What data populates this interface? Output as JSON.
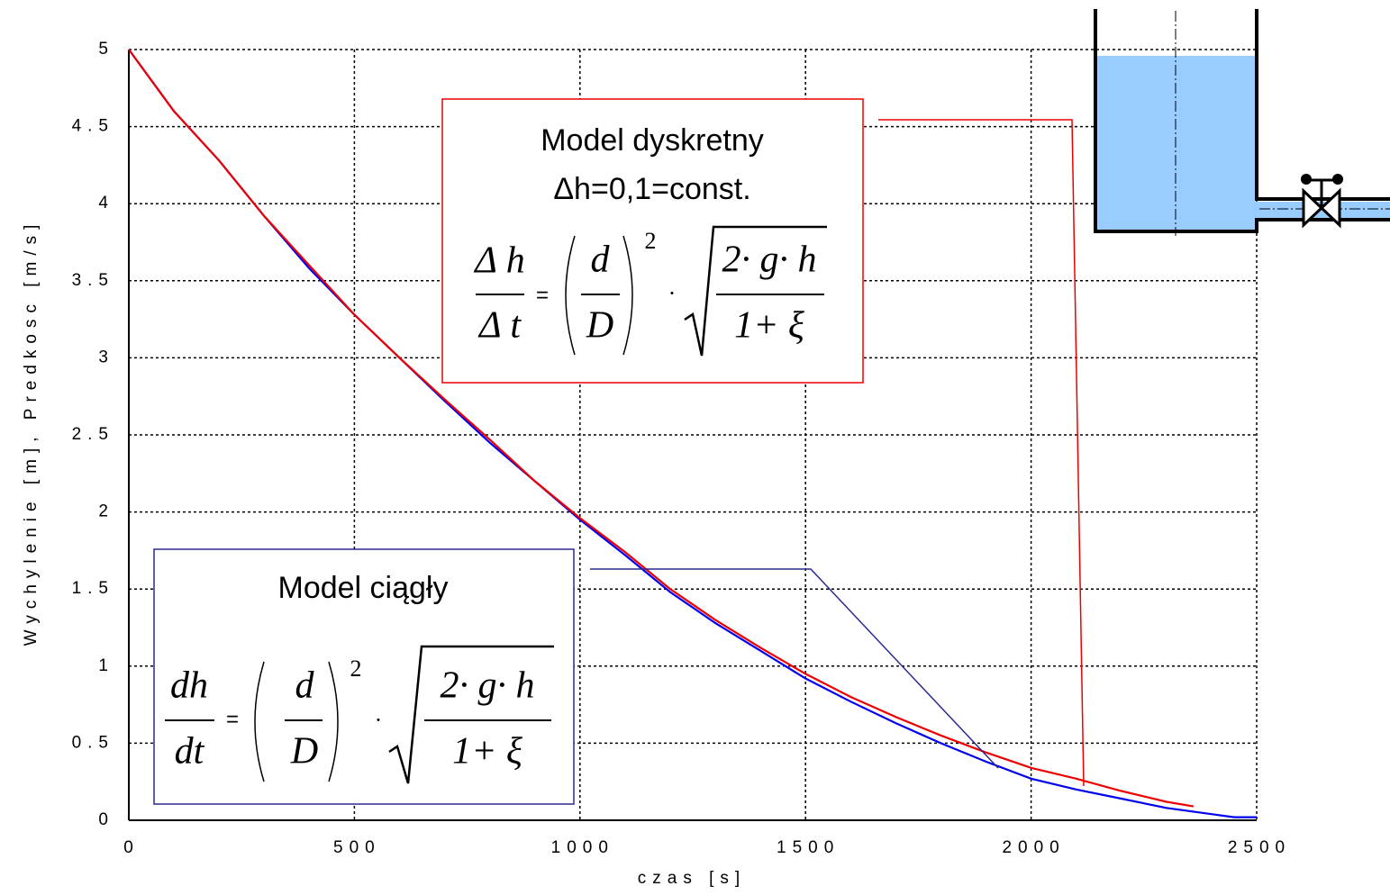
{
  "chart_data": {
    "type": "line",
    "xlabel": "czas [s]",
    "ylabel": "Wychylenie  [m], Predkosc [m/s]",
    "xlim": [
      0,
      2500
    ],
    "xticks": [
      0,
      500,
      1000,
      1500,
      2000,
      2500
    ],
    "ylim": [
      0,
      5
    ],
    "yticks": [
      0,
      0.5,
      1,
      1.5,
      2,
      2.5,
      3,
      3.5,
      4,
      4.5,
      5
    ],
    "grid": true,
    "series": [
      {
        "color": "#0000ee",
        "x": [
          0,
          100,
          200,
          300,
          400,
          500,
          600,
          700,
          800,
          900,
          1000,
          1100,
          1200,
          1300,
          1400,
          1500,
          1600,
          1700,
          1800,
          1900,
          2000,
          2100,
          2200,
          2300,
          2400,
          2450,
          2500
        ],
        "values": [
          5,
          4.6,
          4.28,
          3.92,
          3.58,
          3.28,
          3.0,
          2.72,
          2.45,
          2.2,
          1.95,
          1.72,
          1.48,
          1.28,
          1.1,
          0.92,
          0.77,
          0.63,
          0.5,
          0.38,
          0.27,
          0.2,
          0.14,
          0.08,
          0.04,
          0.02,
          0.02
        ]
      },
      {
        "color": "#ee0000",
        "x": [
          0,
          100,
          200,
          300,
          400,
          500,
          600,
          700,
          800,
          900,
          1000,
          1100,
          1200,
          1300,
          1400,
          1500,
          1600,
          1700,
          1800,
          1900,
          2000,
          2100,
          2200,
          2300,
          2360
        ],
        "values": [
          5,
          4.6,
          4.28,
          3.92,
          3.6,
          3.28,
          3.0,
          2.73,
          2.47,
          2.2,
          1.96,
          1.74,
          1.5,
          1.3,
          1.12,
          0.95,
          0.8,
          0.67,
          0.55,
          0.44,
          0.34,
          0.27,
          0.19,
          0.12,
          0.09
        ]
      }
    ],
    "annotations": {
      "discrete": {
        "title": "Model dyskretny",
        "subtitle": "Δh=0,1=const.",
        "num": "Δ h",
        "den": "Δ t",
        "eq": "=",
        "d": "d",
        "D": "D",
        "power": "2",
        "dot": "·",
        "root_num": "2· g· h",
        "root_den": "1+ ξ"
      },
      "continuous": {
        "title": "Model ciągły",
        "num": "dh",
        "den": "dt",
        "eq": "=",
        "d": "d",
        "D": "D",
        "power": "2",
        "dot": "·",
        "root_num": "2· g· h",
        "root_den": "1+ ξ"
      }
    }
  }
}
